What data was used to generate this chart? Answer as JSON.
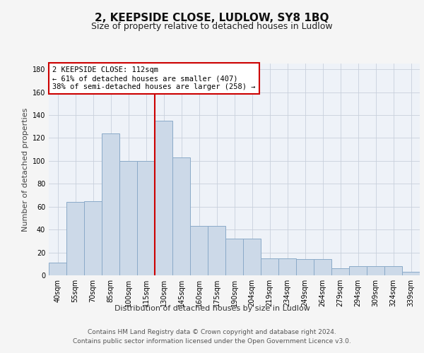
{
  "title": "2, KEEPSIDE CLOSE, LUDLOW, SY8 1BQ",
  "subtitle": "Size of property relative to detached houses in Ludlow",
  "xlabel": "Distribution of detached houses by size in Ludlow",
  "ylabel": "Number of detached properties",
  "categories": [
    "40sqm",
    "55sqm",
    "70sqm",
    "85sqm",
    "100sqm",
    "115sqm",
    "130sqm",
    "145sqm",
    "160sqm",
    "175sqm",
    "190sqm",
    "204sqm",
    "219sqm",
    "234sqm",
    "249sqm",
    "264sqm",
    "279sqm",
    "294sqm",
    "309sqm",
    "324sqm",
    "339sqm"
  ],
  "bar_color": "#ccd9e8",
  "bar_edge_color": "#8aaac8",
  "property_line_x": 5,
  "annotation_text": "2 KEEPSIDE CLOSE: 112sqm\n← 61% of detached houses are smaller (407)\n38% of semi-detached houses are larger (258) →",
  "annotation_box_color": "#ffffff",
  "annotation_box_edge_color": "#cc0000",
  "vline_color": "#cc0000",
  "ylim": [
    0,
    185
  ],
  "yticks": [
    0,
    20,
    40,
    60,
    80,
    100,
    120,
    140,
    160,
    180
  ],
  "footer_line1": "Contains HM Land Registry data © Crown copyright and database right 2024.",
  "footer_line2": "Contains public sector information licensed under the Open Government Licence v3.0.",
  "bg_color": "#eef2f8",
  "grid_color": "#c8d0dc",
  "title_fontsize": 11,
  "subtitle_fontsize": 9,
  "axis_label_fontsize": 8,
  "tick_fontsize": 7,
  "footer_fontsize": 6.5,
  "hist_values": [
    11,
    64,
    65,
    124,
    100,
    100,
    135,
    103,
    43,
    43,
    32,
    32,
    15,
    15,
    14,
    14,
    6,
    8,
    8,
    8,
    3
  ]
}
